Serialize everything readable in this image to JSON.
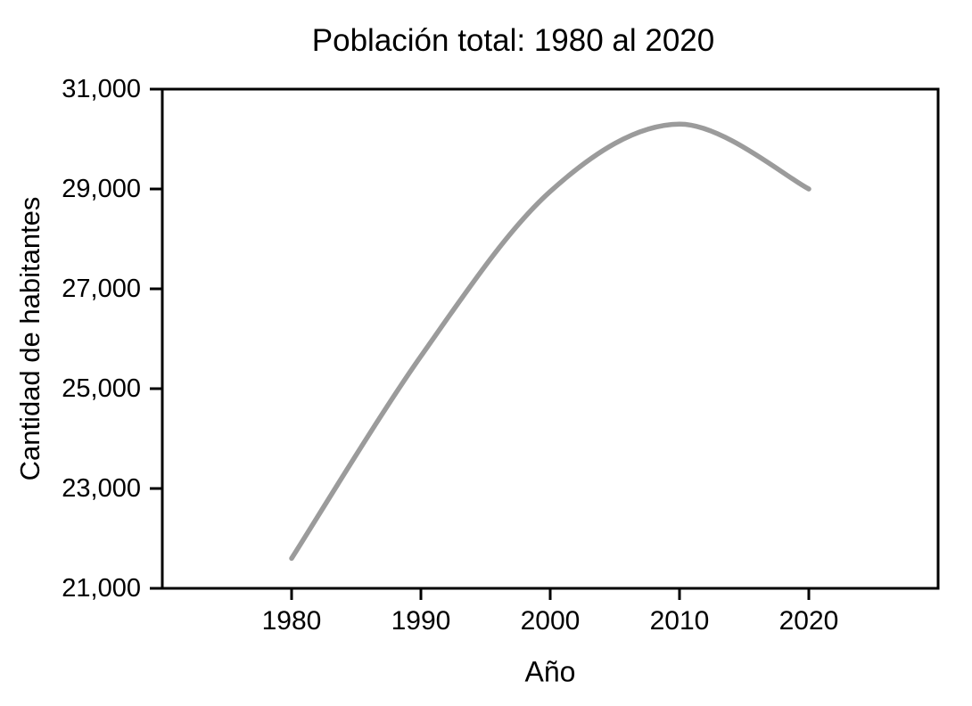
{
  "chart_data": {
    "type": "line",
    "title": "Población total: 1980 al 2020",
    "xlabel": "Año",
    "ylabel": "Cantidad de habitantes",
    "x": [
      1980,
      1990,
      2000,
      2010,
      2020
    ],
    "series": [
      {
        "name": "Población total",
        "values": [
          21600,
          25650,
          28950,
          30300,
          29000
        ]
      }
    ],
    "xlim": [
      1970,
      2030
    ],
    "ylim": [
      21000,
      31000
    ],
    "x_tick_values": [
      1980,
      1990,
      2000,
      2010,
      2020
    ],
    "x_tick_labels": [
      "1980",
      "1990",
      "2000",
      "2010",
      "2020"
    ],
    "y_tick_values": [
      21000,
      23000,
      25000,
      27000,
      29000,
      31000
    ],
    "y_tick_labels": [
      "21,000",
      "23,000",
      "25,000",
      "27,000",
      "29,000",
      "31,000"
    ],
    "grid": false,
    "legend": null,
    "smooth": true,
    "line_color": "#9b9b9b",
    "axis_color": "#000000",
    "text_color": "#000000",
    "background_color": "#ffffff"
  }
}
